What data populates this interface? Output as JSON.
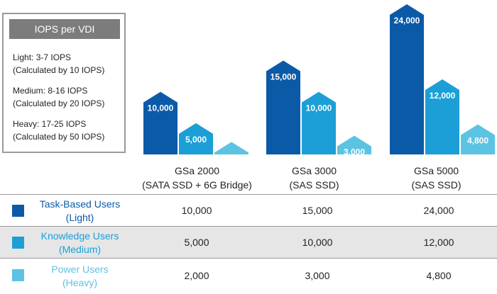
{
  "legend": {
    "title": "IOPS per VDI",
    "entries": [
      {
        "line1": "Light: 3-7 IOPS",
        "line2": "(Calculated by 10 IOPS)",
        "color": "#0b5aa8"
      },
      {
        "line1": "Medium: 8-16 IOPS",
        "line2": "(Calculated by 20 IOPS)",
        "color": "#1b9fd6"
      },
      {
        "line1": "Heavy: 17-25 IOPS",
        "line2": "(Calculated by 50 IOPS)",
        "color": "#5cc3e3"
      }
    ]
  },
  "chart_data": {
    "type": "bar",
    "categories": [
      {
        "line1": "GSa 2000",
        "line2": "(SATA SSD + 6G Bridge)"
      },
      {
        "line1": "GSa 3000",
        "line2": "(SAS SSD)"
      },
      {
        "line1": "GSa 5000",
        "line2": "(SAS SSD)"
      }
    ],
    "series": [
      {
        "name": "Task-Based Users (Light)",
        "label_line1": "Task-Based Users",
        "label_line2": "(Light)",
        "color": "#0b5aa8",
        "values": [
          10000,
          15000,
          24000
        ],
        "labels": [
          "10,000",
          "15,000",
          "24,000"
        ]
      },
      {
        "name": "Knowledge Users (Medium)",
        "label_line1": "Knowledge Users",
        "label_line2": "(Medium)",
        "color": "#1b9fd6",
        "values": [
          5000,
          10000,
          12000
        ],
        "labels": [
          "5,000",
          "10,000",
          "12,000"
        ]
      },
      {
        "name": "Power Users (Heavy)",
        "label_line1": "Power Users",
        "label_line2": "(Heavy)",
        "color": "#5cc3e3",
        "values": [
          2000,
          3000,
          4800
        ],
        "labels": [
          "2,000",
          "3,000",
          "4,800"
        ]
      }
    ],
    "ylim": [
      0,
      24000
    ],
    "grid": false
  }
}
